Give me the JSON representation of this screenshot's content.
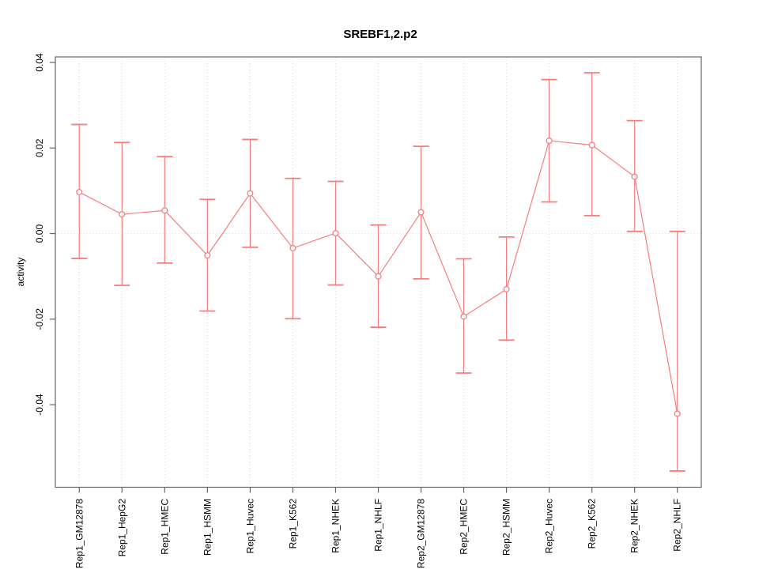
{
  "figure": {
    "background": "#ffffff"
  },
  "chart_data": {
    "type": "line",
    "title": "SREBF1,2.p2",
    "xlabel": "",
    "ylabel": "activity",
    "categories": [
      "Rep1_GM12878",
      "Rep1_HepG2",
      "Rep1_HMEC",
      "Rep1_HSMM",
      "Rep1_Huvec",
      "Rep1_K562",
      "Rep1_NHEK",
      "Rep1_NHLF",
      "Rep2_GM12878",
      "Rep2_HMEC",
      "Rep2_HSMM",
      "Rep2_Huvec",
      "Rep2_K562",
      "Rep2_NHEK",
      "Rep2_NHLF"
    ],
    "series": [
      {
        "name": "activity",
        "marker": "open-circle",
        "color": "#f67d7d",
        "values": [
          0.0097,
          0.0045,
          0.0054,
          -0.0051,
          0.0094,
          -0.0034,
          0.0001,
          -0.01,
          0.005,
          -0.0194,
          -0.013,
          0.0217,
          0.0207,
          0.0133,
          -0.0421
        ],
        "error_upper": [
          0.0255,
          0.0213,
          0.018,
          0.008,
          0.022,
          0.0129,
          0.0122,
          0.002,
          0.0204,
          -0.0059,
          -0.0008,
          0.036,
          0.0376,
          0.0264,
          0.0005
        ],
        "error_lower": [
          -0.0058,
          -0.0121,
          -0.0069,
          -0.0181,
          -0.0032,
          -0.0199,
          -0.012,
          -0.0219,
          -0.0106,
          -0.0326,
          -0.0249,
          0.0074,
          0.0042,
          0.0005,
          -0.0555
        ]
      }
    ],
    "ylim": [
      -0.0593,
      0.0413
    ],
    "yticks": [
      -0.04,
      -0.02,
      0,
      0.02,
      0.04
    ],
    "ytick_labels": [
      "-0.04",
      "-0.02",
      "0.00",
      "0.02",
      "0.04"
    ],
    "grid": {
      "vertical_dotted_per_category": true,
      "horizontal_zero_line": true,
      "color": "#d9d9d9"
    },
    "legend": "none",
    "axis_color": "#666666",
    "box": true
  }
}
